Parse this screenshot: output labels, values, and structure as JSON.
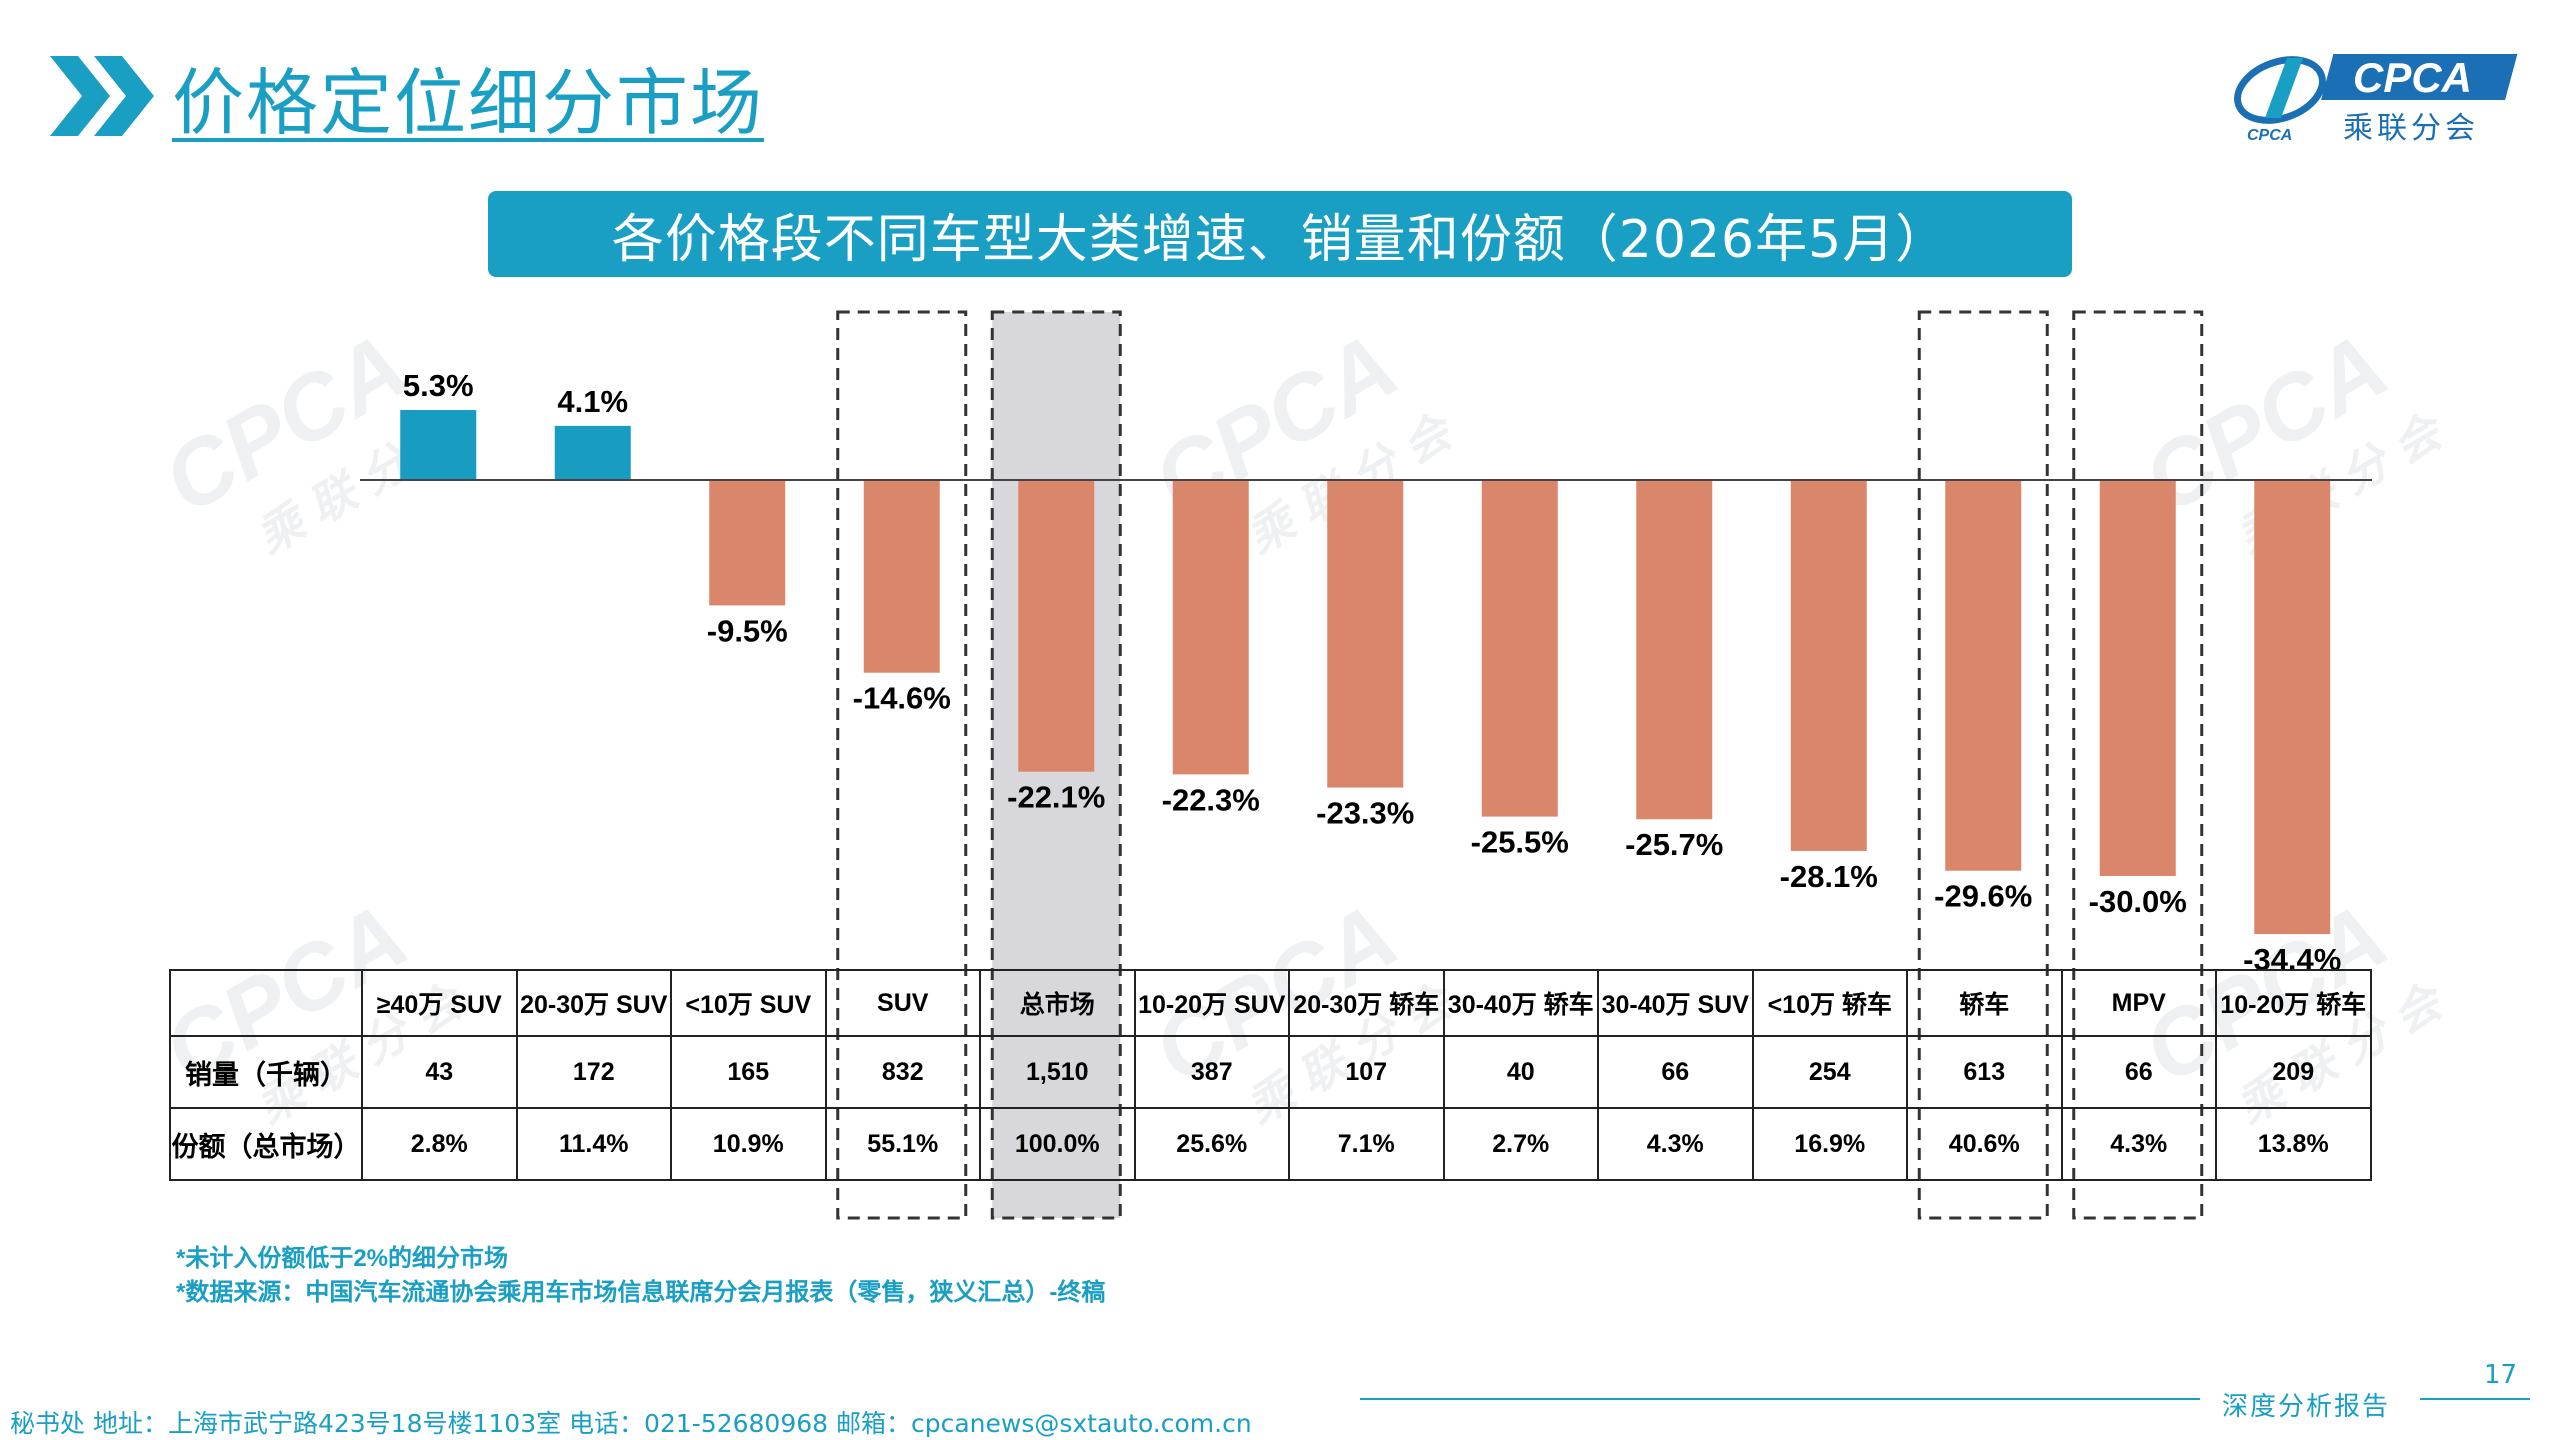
{
  "header": {
    "title": "价格定位细分市场",
    "logo_text": "CPCA",
    "logo_sub": "乘联分会",
    "logo_small": "CPCA"
  },
  "banner": {
    "title": "各价格段不同车型大类增速、销量和份额（2026年5月）"
  },
  "watermark": {
    "text": "CPCA",
    "sub": "乘联分会"
  },
  "colors": {
    "positive": "#189cc1",
    "negative": "#d9866a",
    "highlight_bg": "#d8d8dc",
    "accent": "#1a9fc4"
  },
  "chart_data": {
    "type": "bar",
    "title": "各价格段不同车型大类增速、销量和份额（2026年5月）",
    "categories": [
      "≥40万 SUV",
      "20-30万 SUV",
      "<10万 SUV",
      "SUV",
      "总市场",
      "10-20万 SUV",
      "20-30万 轿车",
      "30-40万 轿车",
      "30-40万 SUV",
      "<10万 轿车",
      "轿车",
      "MPV",
      "10-20万 轿车"
    ],
    "values": [
      5.3,
      4.1,
      -9.5,
      -14.6,
      -22.1,
      -22.3,
      -23.3,
      -25.5,
      -25.7,
      -28.1,
      -29.6,
      -30.0,
      -34.4
    ],
    "value_labels": [
      "5.3%",
      "4.1%",
      "-9.5%",
      "-14.6%",
      "-22.1%",
      "-22.3%",
      "-23.3%",
      "-25.5%",
      "-25.7%",
      "-28.1%",
      "-29.6%",
      "-30.0%",
      "-34.4%"
    ],
    "unit": "%",
    "ylim": [
      -36,
      7
    ],
    "grid": false,
    "highlighted_category": "总市场",
    "boxed_categories": [
      "SUV",
      "总市场",
      "轿车",
      "MPV"
    ]
  },
  "table": {
    "rows": [
      {
        "label": "销量（千辆）",
        "values": [
          "43",
          "172",
          "165",
          "832",
          "1,510",
          "387",
          "107",
          "40",
          "66",
          "254",
          "613",
          "66",
          "209"
        ]
      },
      {
        "label": "份额（总市场）",
        "values": [
          "2.8%",
          "11.4%",
          "10.9%",
          "55.1%",
          "100.0%",
          "25.6%",
          "7.1%",
          "2.7%",
          "4.3%",
          "16.9%",
          "40.6%",
          "4.3%",
          "13.8%"
        ]
      }
    ]
  },
  "notes": [
    "*未计入份额低于2%的细分市场",
    "*数据来源：中国汽车流通协会乘用车市场信息联席分会月报表（零售，狭义汇总）-终稿"
  ],
  "page_number": "17",
  "report_tag": "深度分析报告",
  "footer": "秘书处   地址：上海市武宁路423号18号楼1103室  电话：021-52680968   邮箱：cpcanews@sxtauto.com.cn"
}
